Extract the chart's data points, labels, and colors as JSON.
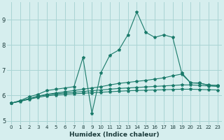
{
  "title": "",
  "xlabel": "Humidex (Indice chaleur)",
  "bg_color": "#d6eeee",
  "grid_color": "#aad4d4",
  "line_color": "#1a7a6a",
  "xlim": [
    -0.5,
    23.5
  ],
  "ylim": [
    4.85,
    9.7
  ],
  "yticks": [
    5,
    6,
    7,
    8,
    9
  ],
  "xticks": [
    0,
    1,
    2,
    3,
    4,
    5,
    6,
    7,
    8,
    9,
    10,
    11,
    12,
    13,
    14,
    15,
    16,
    17,
    18,
    19,
    20,
    21,
    22,
    23
  ],
  "lines": [
    {
      "x": [
        0,
        1,
        2,
        3,
        4,
        5,
        6,
        7,
        8,
        9,
        10,
        11,
        12,
        13,
        14,
        15,
        16,
        17,
        18,
        19,
        20,
        21,
        22,
        23
      ],
      "y": [
        5.7,
        5.8,
        5.95,
        6.05,
        6.2,
        6.25,
        6.3,
        6.35,
        7.5,
        5.3,
        6.9,
        7.6,
        7.8,
        8.4,
        9.3,
        8.5,
        8.3,
        8.4,
        8.3,
        6.9,
        6.5,
        6.5,
        6.4,
        6.4
      ]
    },
    {
      "x": [
        0,
        1,
        2,
        3,
        4,
        5,
        6,
        7,
        8,
        9,
        10,
        11,
        12,
        13,
        14,
        15,
        16,
        17,
        18,
        19,
        20,
        21,
        22,
        23
      ],
      "y": [
        5.7,
        5.78,
        5.88,
        5.98,
        6.05,
        6.1,
        6.15,
        6.2,
        6.25,
        6.3,
        6.35,
        6.42,
        6.48,
        6.52,
        6.56,
        6.6,
        6.65,
        6.7,
        6.78,
        6.85,
        6.5,
        6.48,
        6.42,
        6.4
      ]
    },
    {
      "x": [
        0,
        1,
        2,
        3,
        4,
        5,
        6,
        7,
        8,
        9,
        10,
        11,
        12,
        13,
        14,
        15,
        16,
        17,
        18,
        19,
        20,
        21,
        22,
        23
      ],
      "y": [
        5.7,
        5.78,
        5.87,
        5.97,
        6.03,
        6.07,
        6.1,
        6.13,
        6.16,
        6.19,
        6.22,
        6.25,
        6.28,
        6.3,
        6.32,
        6.34,
        6.36,
        6.38,
        6.4,
        6.42,
        6.42,
        6.4,
        6.38,
        6.36
      ]
    },
    {
      "x": [
        0,
        1,
        2,
        3,
        4,
        5,
        6,
        7,
        8,
        9,
        10,
        11,
        12,
        13,
        14,
        15,
        16,
        17,
        18,
        19,
        20,
        21,
        22,
        23
      ],
      "y": [
        5.7,
        5.77,
        5.85,
        5.93,
        5.99,
        6.02,
        6.05,
        6.07,
        6.09,
        6.11,
        6.13,
        6.15,
        6.17,
        6.19,
        6.2,
        6.21,
        6.22,
        6.23,
        6.24,
        6.25,
        6.25,
        6.24,
        6.23,
        6.22
      ]
    }
  ]
}
